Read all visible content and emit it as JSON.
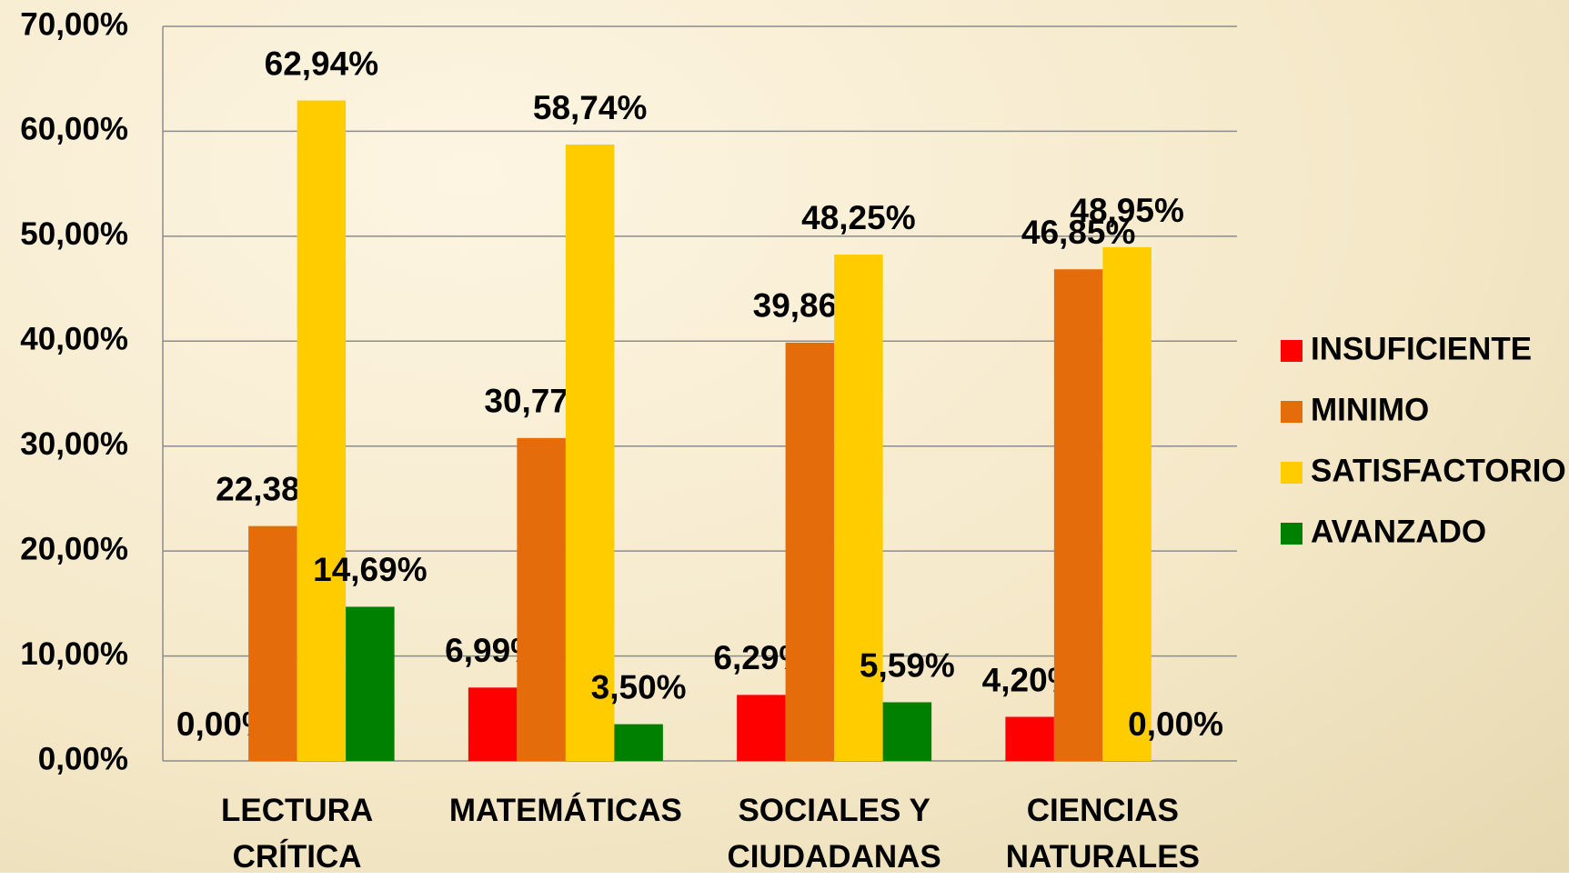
{
  "chart_data": {
    "type": "bar",
    "categories": [
      "LECTURA CRÍTICA",
      "MATEMÁTICAS",
      "SOCIALES Y CIUDADANAS",
      "CIENCIAS NATURALES"
    ],
    "series": [
      {
        "name": "INSUFICIENTE",
        "color": "#ff0000",
        "values": [
          0,
          6.99,
          6.29,
          4.2
        ],
        "value_labels": [
          "0,00%",
          "6,99%",
          "6,29%",
          "4,20%"
        ]
      },
      {
        "name": "MINIMO",
        "color": "#e46c0a",
        "values": [
          22.38,
          30.77,
          39.86,
          46.85
        ],
        "value_labels": [
          "22,38%",
          "30,77%",
          "39,86%",
          "46,85%"
        ]
      },
      {
        "name": "SATISFACTORIO",
        "color": "#ffcc00",
        "values": [
          62.94,
          58.74,
          48.25,
          48.95
        ],
        "value_labels": [
          "62,94%",
          "58,74%",
          "48,25%",
          "48,95%"
        ]
      },
      {
        "name": "AVANZADO",
        "color": "#008000",
        "values": [
          14.69,
          3.5,
          5.59,
          0
        ],
        "value_labels": [
          "14,69%",
          "3,50%",
          "5,59%",
          "0,00%"
        ]
      }
    ],
    "ylim": [
      0,
      70
    ],
    "yticks": [
      {
        "value": 0,
        "label": "0,00%"
      },
      {
        "value": 10,
        "label": "10,00%"
      },
      {
        "value": 20,
        "label": "20,00%"
      },
      {
        "value": 30,
        "label": "30,00%"
      },
      {
        "value": 40,
        "label": "40,00%"
      },
      {
        "value": 50,
        "label": "50,00%"
      },
      {
        "value": 60,
        "label": "60,00%"
      },
      {
        "value": 70,
        "label": "70,00%"
      }
    ],
    "grid": true,
    "legend": "right"
  }
}
